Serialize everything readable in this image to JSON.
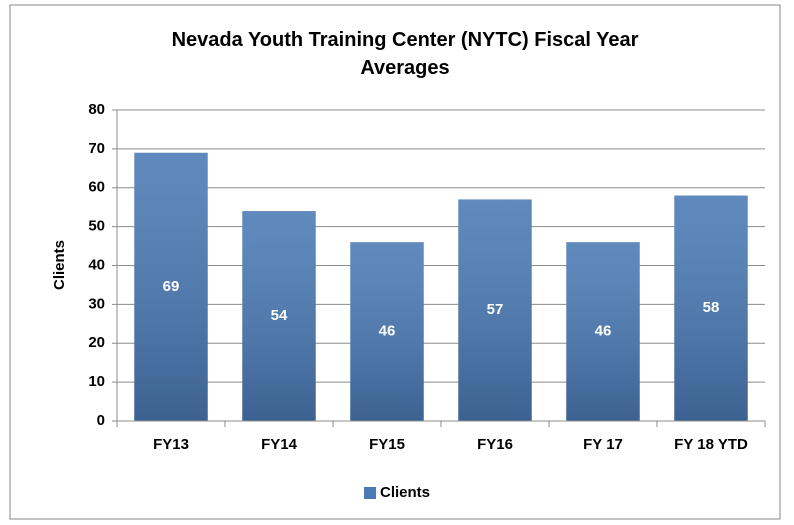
{
  "chart_data": {
    "type": "bar",
    "title": "Nevada Youth Training Center (NYTC) Fiscal Year Averages",
    "y_label": "Clients",
    "categories": [
      "FY13",
      "FY14",
      "FY15",
      "FY16",
      "FY 17",
      "FY 18 YTD"
    ],
    "series": [
      {
        "name": "Clients",
        "color": "#4a7ab5",
        "values": [
          69,
          54,
          46,
          57,
          46,
          58
        ]
      }
    ],
    "ylim": [
      0,
      80
    ],
    "yticks": [
      0,
      10,
      20,
      30,
      40,
      50,
      60,
      70,
      80
    ],
    "grid": true,
    "legend": "bottom"
  }
}
